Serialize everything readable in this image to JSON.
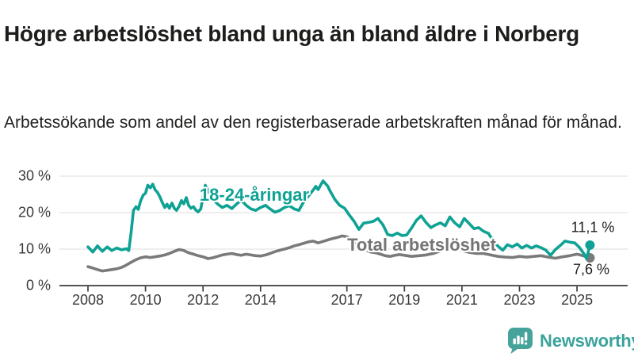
{
  "header": {
    "title": "Högre arbetslöshet bland unga än bland äldre i Norberg",
    "subtitle": "Arbetssökande som andel av den registerbaserade arbetskraften månad för månad."
  },
  "chart_data": {
    "type": "line",
    "unit": "%",
    "grid": "horizontal",
    "legend": "inline-labels",
    "x_axis": {
      "range": [
        2008,
        2025.6
      ],
      "ticks": [
        2008,
        2010,
        2012,
        2014,
        2017,
        2019,
        2021,
        2023,
        2025
      ],
      "tick_labels": [
        "2008",
        "2010",
        "2012",
        "2014",
        "2017",
        "2019",
        "2021",
        "2023",
        "2025"
      ]
    },
    "y_axis": {
      "range": [
        0,
        30
      ],
      "ticks": [
        0,
        10,
        20,
        30
      ],
      "tick_labels": [
        "0 %",
        "10 %",
        "20 %",
        "30 %"
      ]
    },
    "series": [
      {
        "name": "18-24-åringar",
        "color": "#0fa294",
        "end_value": 11.1,
        "end_label": "11,1 %",
        "points": [
          [
            2008.0,
            10.6
          ],
          [
            2008.17,
            9.2
          ],
          [
            2008.33,
            10.9
          ],
          [
            2008.5,
            9.4
          ],
          [
            2008.67,
            10.6
          ],
          [
            2008.83,
            9.6
          ],
          [
            2009.0,
            10.3
          ],
          [
            2009.17,
            9.8
          ],
          [
            2009.33,
            10.1
          ],
          [
            2009.42,
            9.6
          ],
          [
            2009.5,
            14.5
          ],
          [
            2009.58,
            20.6
          ],
          [
            2009.67,
            21.6
          ],
          [
            2009.75,
            20.9
          ],
          [
            2009.83,
            23.2
          ],
          [
            2009.92,
            24.8
          ],
          [
            2010.0,
            25.3
          ],
          [
            2010.08,
            27.5
          ],
          [
            2010.17,
            26.8
          ],
          [
            2010.25,
            27.8
          ],
          [
            2010.33,
            26.3
          ],
          [
            2010.42,
            25.5
          ],
          [
            2010.5,
            24.3
          ],
          [
            2010.58,
            22.8
          ],
          [
            2010.67,
            21.4
          ],
          [
            2010.75,
            22.3
          ],
          [
            2010.83,
            21.2
          ],
          [
            2010.92,
            22.6
          ],
          [
            2011.0,
            21.2
          ],
          [
            2011.08,
            20.6
          ],
          [
            2011.17,
            21.8
          ],
          [
            2011.25,
            23.3
          ],
          [
            2011.33,
            22.4
          ],
          [
            2011.42,
            24.1
          ],
          [
            2011.5,
            22.0
          ],
          [
            2011.58,
            21.2
          ],
          [
            2011.67,
            21.6
          ],
          [
            2011.75,
            20.7
          ],
          [
            2011.83,
            20.2
          ],
          [
            2011.92,
            21.0
          ],
          [
            2012.0,
            24.2
          ],
          [
            2012.08,
            27.5
          ],
          [
            2012.17,
            26.0
          ],
          [
            2012.33,
            23.8
          ],
          [
            2012.5,
            22.4
          ],
          [
            2012.67,
            21.4
          ],
          [
            2012.83,
            22.0
          ],
          [
            2013.0,
            21.1
          ],
          [
            2013.17,
            22.4
          ],
          [
            2013.33,
            23.4
          ],
          [
            2013.5,
            22.0
          ],
          [
            2013.67,
            21.0
          ],
          [
            2013.83,
            20.6
          ],
          [
            2014.0,
            21.4
          ],
          [
            2014.17,
            22.0
          ],
          [
            2014.33,
            21.0
          ],
          [
            2014.5,
            20.1
          ],
          [
            2014.67,
            20.6
          ],
          [
            2014.83,
            21.4
          ],
          [
            2015.0,
            21.9
          ],
          [
            2015.17,
            21.0
          ],
          [
            2015.33,
            20.6
          ],
          [
            2015.5,
            23.0
          ],
          [
            2015.67,
            24.6
          ],
          [
            2015.83,
            26.2
          ],
          [
            2015.92,
            27.2
          ],
          [
            2016.0,
            26.3
          ],
          [
            2016.17,
            28.7
          ],
          [
            2016.25,
            28.0
          ],
          [
            2016.33,
            27.3
          ],
          [
            2016.42,
            25.9
          ],
          [
            2016.58,
            23.6
          ],
          [
            2016.75,
            22.0
          ],
          [
            2016.92,
            21.2
          ],
          [
            2017.08,
            19.4
          ],
          [
            2017.25,
            17.6
          ],
          [
            2017.42,
            15.4
          ],
          [
            2017.58,
            17.1
          ],
          [
            2017.75,
            17.3
          ],
          [
            2017.92,
            17.6
          ],
          [
            2018.08,
            18.4
          ],
          [
            2018.25,
            16.7
          ],
          [
            2018.42,
            14.0
          ],
          [
            2018.58,
            13.7
          ],
          [
            2018.75,
            14.4
          ],
          [
            2018.92,
            13.7
          ],
          [
            2019.08,
            13.9
          ],
          [
            2019.25,
            15.8
          ],
          [
            2019.42,
            17.9
          ],
          [
            2019.58,
            19.1
          ],
          [
            2019.75,
            17.3
          ],
          [
            2019.92,
            15.9
          ],
          [
            2020.08,
            16.6
          ],
          [
            2020.25,
            17.2
          ],
          [
            2020.42,
            16.4
          ],
          [
            2020.58,
            18.8
          ],
          [
            2020.75,
            17.2
          ],
          [
            2020.92,
            16.1
          ],
          [
            2021.08,
            18.4
          ],
          [
            2021.25,
            17.0
          ],
          [
            2021.42,
            15.6
          ],
          [
            2021.58,
            15.9
          ],
          [
            2021.75,
            14.9
          ],
          [
            2021.92,
            14.3
          ],
          [
            2022.08,
            12.4
          ],
          [
            2022.25,
            10.8
          ],
          [
            2022.42,
            9.7
          ],
          [
            2022.58,
            11.2
          ],
          [
            2022.75,
            10.6
          ],
          [
            2022.92,
            11.4
          ],
          [
            2023.08,
            10.3
          ],
          [
            2023.25,
            11.0
          ],
          [
            2023.42,
            10.3
          ],
          [
            2023.58,
            10.9
          ],
          [
            2023.75,
            10.4
          ],
          [
            2023.92,
            9.7
          ],
          [
            2024.08,
            8.3
          ],
          [
            2024.25,
            9.9
          ],
          [
            2024.42,
            11.0
          ],
          [
            2024.58,
            12.2
          ],
          [
            2024.75,
            11.9
          ],
          [
            2024.92,
            11.7
          ],
          [
            2025.08,
            10.5
          ],
          [
            2025.25,
            8.6
          ],
          [
            2025.33,
            7.4
          ],
          [
            2025.45,
            11.1
          ]
        ]
      },
      {
        "name": "Total arbetslöshet",
        "color": "#7a7a7a",
        "end_value": 7.6,
        "end_label": "7,6 %",
        "points": [
          [
            2008.0,
            5.2
          ],
          [
            2008.17,
            4.8
          ],
          [
            2008.33,
            4.4
          ],
          [
            2008.5,
            4.0
          ],
          [
            2008.67,
            4.2
          ],
          [
            2008.83,
            4.4
          ],
          [
            2009.0,
            4.6
          ],
          [
            2009.17,
            5.0
          ],
          [
            2009.33,
            5.6
          ],
          [
            2009.5,
            6.4
          ],
          [
            2009.67,
            7.1
          ],
          [
            2009.83,
            7.6
          ],
          [
            2010.0,
            7.9
          ],
          [
            2010.17,
            7.7
          ],
          [
            2010.33,
            7.9
          ],
          [
            2010.5,
            8.1
          ],
          [
            2010.67,
            8.4
          ],
          [
            2010.83,
            8.8
          ],
          [
            2011.0,
            9.4
          ],
          [
            2011.17,
            9.9
          ],
          [
            2011.33,
            9.6
          ],
          [
            2011.5,
            9.0
          ],
          [
            2011.67,
            8.6
          ],
          [
            2011.83,
            8.2
          ],
          [
            2012.0,
            7.9
          ],
          [
            2012.17,
            7.4
          ],
          [
            2012.33,
            7.6
          ],
          [
            2012.5,
            8.0
          ],
          [
            2012.67,
            8.4
          ],
          [
            2012.83,
            8.6
          ],
          [
            2013.0,
            8.8
          ],
          [
            2013.17,
            8.5
          ],
          [
            2013.33,
            8.3
          ],
          [
            2013.5,
            8.6
          ],
          [
            2013.67,
            8.4
          ],
          [
            2013.83,
            8.2
          ],
          [
            2014.0,
            8.1
          ],
          [
            2014.17,
            8.4
          ],
          [
            2014.33,
            8.8
          ],
          [
            2014.5,
            9.3
          ],
          [
            2014.67,
            9.7
          ],
          [
            2014.83,
            10.0
          ],
          [
            2015.0,
            10.4
          ],
          [
            2015.17,
            10.9
          ],
          [
            2015.33,
            11.2
          ],
          [
            2015.5,
            11.6
          ],
          [
            2015.67,
            12.0
          ],
          [
            2015.83,
            12.2
          ],
          [
            2016.0,
            11.7
          ],
          [
            2016.17,
            12.1
          ],
          [
            2016.33,
            12.5
          ],
          [
            2016.5,
            12.9
          ],
          [
            2016.67,
            13.2
          ],
          [
            2016.83,
            13.6
          ],
          [
            2017.0,
            13.4
          ],
          [
            2017.17,
            12.6
          ],
          [
            2017.33,
            11.6
          ],
          [
            2017.5,
            10.4
          ],
          [
            2017.67,
            9.7
          ],
          [
            2017.83,
            9.2
          ],
          [
            2018.0,
            9.0
          ],
          [
            2018.17,
            8.6
          ],
          [
            2018.33,
            8.2
          ],
          [
            2018.5,
            8.0
          ],
          [
            2018.67,
            8.3
          ],
          [
            2018.83,
            8.5
          ],
          [
            2019.0,
            8.3
          ],
          [
            2019.25,
            8.0
          ],
          [
            2019.5,
            8.2
          ],
          [
            2019.75,
            8.4
          ],
          [
            2020.0,
            8.8
          ],
          [
            2020.25,
            9.5
          ],
          [
            2020.5,
            10.1
          ],
          [
            2020.75,
            10.0
          ],
          [
            2021.0,
            9.6
          ],
          [
            2021.25,
            9.1
          ],
          [
            2021.5,
            8.8
          ],
          [
            2021.75,
            8.8
          ],
          [
            2022.0,
            8.4
          ],
          [
            2022.25,
            8.0
          ],
          [
            2022.5,
            7.8
          ],
          [
            2022.75,
            7.7
          ],
          [
            2023.0,
            8.0
          ],
          [
            2023.25,
            7.8
          ],
          [
            2023.5,
            8.0
          ],
          [
            2023.75,
            8.2
          ],
          [
            2024.0,
            7.8
          ],
          [
            2024.25,
            7.5
          ],
          [
            2024.5,
            7.9
          ],
          [
            2024.75,
            8.2
          ],
          [
            2025.0,
            8.6
          ],
          [
            2025.2,
            8.2
          ],
          [
            2025.45,
            7.6
          ]
        ]
      }
    ]
  },
  "footer": {
    "brand": "Newsworthy",
    "logo_icon": "bar-chart-speech-bubble-icon",
    "brand_color": "#3ba39b"
  }
}
